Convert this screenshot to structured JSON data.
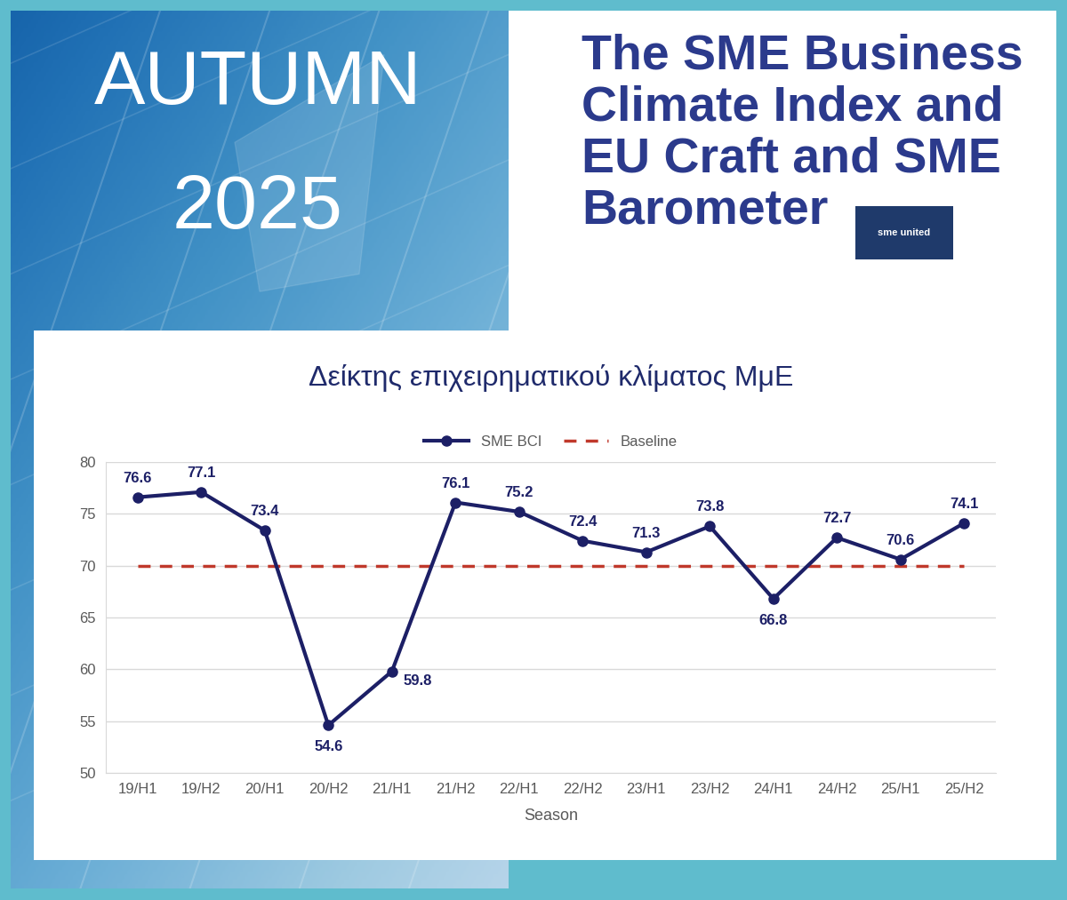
{
  "poster": {
    "season": "AUTUMN",
    "year": "2025",
    "heading": "The SME Business Climate Index and EU Craft and SME Barometer",
    "logo": "sme united"
  },
  "chart_data": {
    "type": "line",
    "title": "Δείκτης επιχειρηματικού κλίματος ΜμΕ",
    "x_label": "Season",
    "categories": [
      "19/H1",
      "19/H2",
      "20/H1",
      "20/H2",
      "21/H1",
      "21/H2",
      "22/H1",
      "22/H2",
      "23/H1",
      "23/H2",
      "24/H1",
      "24/H2",
      "25/H1",
      "25/H2"
    ],
    "series": [
      {
        "name": "SME BCI",
        "color": "#1c1f66",
        "marker": "o",
        "line_style": "solid",
        "data_labels": true,
        "values": [
          76.6,
          77.1,
          73.4,
          54.6,
          59.8,
          76.1,
          75.2,
          72.4,
          71.3,
          73.8,
          66.8,
          72.7,
          70.6,
          74.1
        ]
      },
      {
        "name": "Baseline",
        "color": "#c0392b",
        "marker": "none",
        "line_style": "dashed",
        "data_labels": false,
        "values": [
          70,
          70,
          70,
          70,
          70,
          70,
          70,
          70,
          70,
          70,
          70,
          70,
          70,
          70
        ]
      }
    ],
    "ylim": [
      50,
      80
    ],
    "yticks": [
      50,
      55,
      60,
      65,
      70,
      75,
      80
    ],
    "grid": true,
    "legend": "upper center"
  }
}
